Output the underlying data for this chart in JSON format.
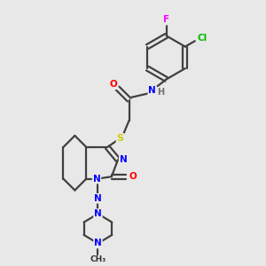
{
  "bg_color": "#e8e8e8",
  "atom_colors": {
    "N": "#0000ff",
    "O": "#ff0000",
    "S": "#cccc00",
    "F": "#ff00ff",
    "Cl": "#00bb00",
    "C": "#303030",
    "H": "#707070"
  },
  "bond_color": "#404040",
  "bond_width": 1.6,
  "figsize": [
    3.0,
    3.0
  ],
  "dpi": 100
}
